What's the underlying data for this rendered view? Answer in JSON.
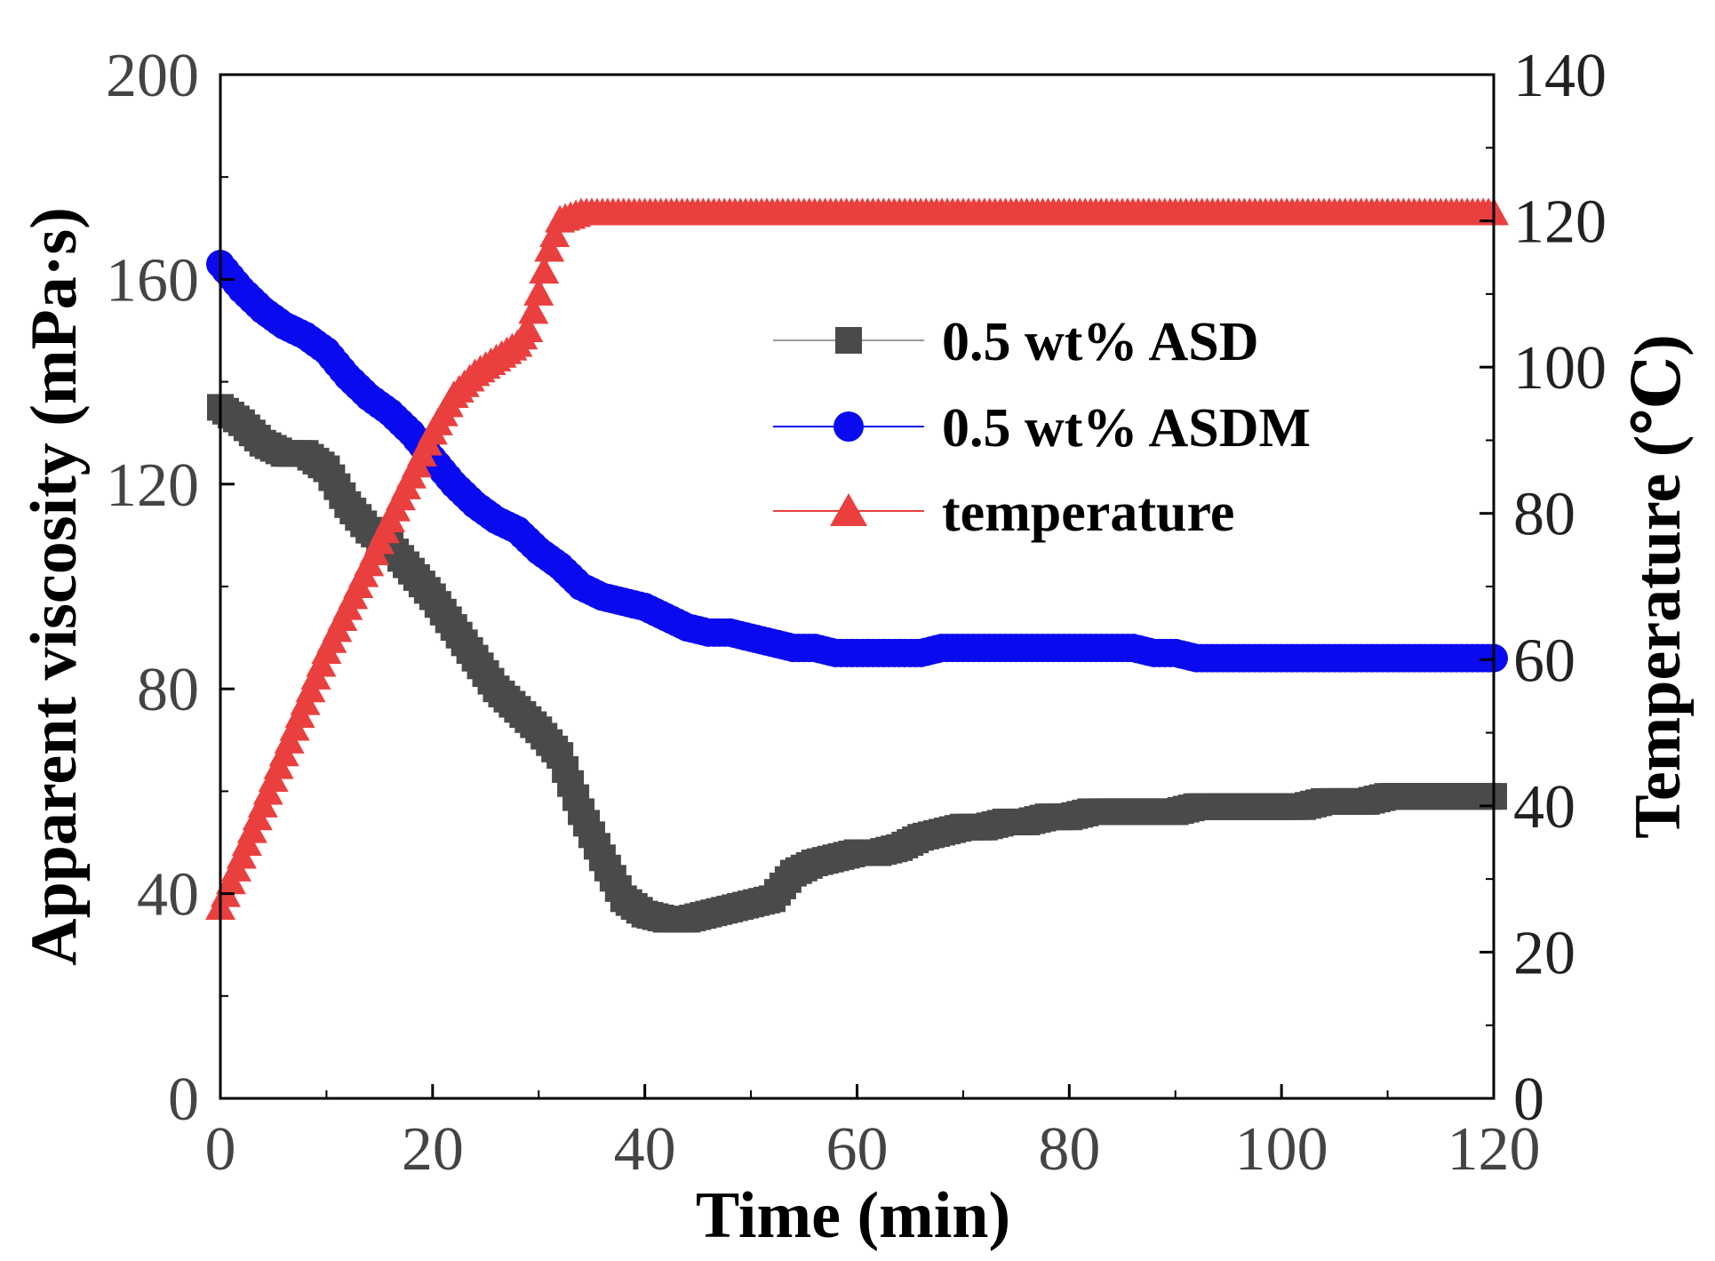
{
  "chart_data": {
    "type": "line",
    "xlabel": "Time (min)",
    "ylabel": "Apparent viscosity (mPa·s)",
    "y2label": "Temperature (℃)",
    "xlim": [
      0,
      120
    ],
    "ylim": [
      0,
      200
    ],
    "y2lim": [
      0,
      140
    ],
    "xticks": [
      0,
      20,
      40,
      60,
      80,
      100,
      120
    ],
    "yticks": [
      0,
      40,
      80,
      120,
      160,
      200
    ],
    "y2ticks": [
      0,
      20,
      40,
      60,
      80,
      100,
      120,
      140
    ],
    "grid": false,
    "legend_position": "upper-right",
    "series": [
      {
        "name": "0.5 wt% ASD",
        "axis": "left",
        "marker": "square",
        "color": "#4a4a4a",
        "x": [
          0,
          2,
          4,
          6,
          8,
          10,
          12,
          14,
          16,
          18,
          20,
          22,
          24,
          26,
          28,
          30,
          32,
          34,
          36,
          38,
          40,
          42,
          44,
          46,
          48,
          50,
          52,
          54,
          56,
          58,
          60,
          62,
          64,
          66,
          68,
          70,
          72,
          74,
          76,
          78,
          80,
          82,
          84,
          86,
          88,
          90,
          92,
          94,
          96,
          98,
          100,
          102,
          104,
          106,
          108,
          110,
          112,
          114,
          116,
          118,
          120
        ],
        "y": [
          135,
          132,
          128,
          126,
          126,
          123,
          116,
          111,
          108,
          103,
          98,
          92,
          86,
          80,
          76,
          72,
          67,
          56,
          47,
          39,
          36,
          35,
          35,
          36,
          37,
          38,
          39,
          44,
          46,
          47,
          48,
          48,
          49,
          51,
          52,
          53,
          53,
          54,
          54,
          55,
          55,
          56,
          56,
          56,
          56,
          56,
          57,
          57,
          57,
          57,
          57,
          57,
          58,
          58,
          58,
          59,
          59,
          59,
          59,
          59,
          59
        ]
      },
      {
        "name": "0.5 wt% ASDM",
        "axis": "left",
        "marker": "circle",
        "color": "#0a0aef",
        "x": [
          0,
          2,
          4,
          6,
          8,
          10,
          12,
          14,
          16,
          18,
          20,
          22,
          24,
          26,
          28,
          30,
          32,
          34,
          36,
          38,
          40,
          42,
          44,
          46,
          48,
          50,
          52,
          54,
          56,
          58,
          60,
          62,
          64,
          66,
          68,
          70,
          72,
          74,
          76,
          78,
          80,
          82,
          84,
          86,
          88,
          90,
          92,
          94,
          96,
          98,
          100,
          102,
          104,
          106,
          108,
          110,
          112,
          114,
          116,
          118,
          120
        ],
        "y": [
          163,
          158,
          154,
          151,
          149,
          146,
          141,
          137,
          134,
          130,
          125,
          120,
          116,
          113,
          111,
          107,
          104,
          100,
          98,
          97,
          96,
          94,
          92,
          91,
          91,
          90,
          89,
          88,
          88,
          87,
          87,
          87,
          87,
          87,
          88,
          88,
          88,
          88,
          88,
          88,
          88,
          88,
          88,
          88,
          87,
          87,
          86,
          86,
          86,
          86,
          86,
          86,
          86,
          86,
          86,
          86,
          86,
          86,
          86,
          86,
          86
        ]
      },
      {
        "name": "temperature",
        "axis": "right",
        "marker": "triangle",
        "color": "#ea3f3f",
        "x": [
          0,
          2,
          4,
          6,
          8,
          10,
          12,
          14,
          16,
          18,
          20,
          22,
          24,
          26,
          28,
          29,
          30,
          31,
          32,
          34,
          36,
          40,
          50,
          60,
          70,
          80,
          90,
          100,
          110,
          120
        ],
        "y": [
          26,
          33,
          40,
          47,
          54,
          61,
          67,
          73,
          79,
          85,
          91,
          96,
          99,
          101,
          103,
          105,
          110,
          116,
          120,
          121,
          121,
          121,
          121,
          121,
          121,
          121,
          121,
          121,
          121,
          121
        ]
      }
    ]
  }
}
